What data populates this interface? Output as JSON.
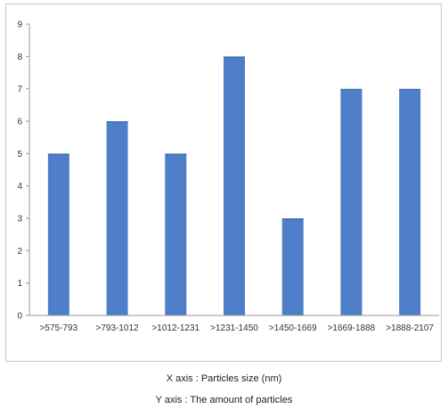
{
  "chart_data": {
    "type": "bar",
    "categories": [
      ">575-793",
      ">793-1012",
      ">1012-1231",
      ">1231-1450",
      ">1450-1669",
      ">1669-1888",
      ">1888-2107"
    ],
    "values": [
      5,
      6,
      5,
      8,
      3,
      7,
      7
    ],
    "ylim": [
      0,
      9
    ],
    "yticks": [
      0,
      1,
      2,
      3,
      4,
      5,
      6,
      7,
      8,
      9
    ],
    "grid": false,
    "bar_color": "#4f7ec8",
    "xlabel": "X axis : Particles size (nm)",
    "ylabel": "Y axis : The amount of particles"
  }
}
